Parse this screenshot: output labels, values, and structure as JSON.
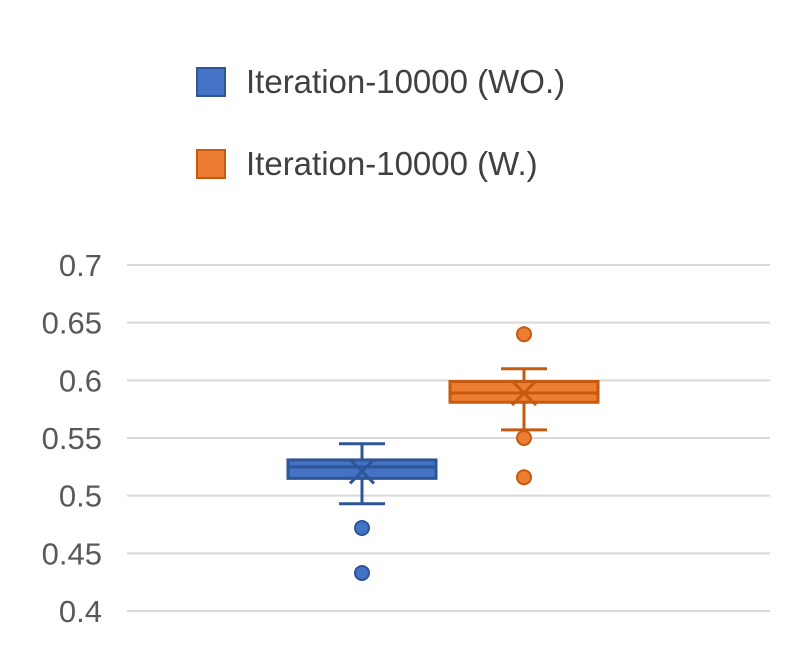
{
  "chart_data": {
    "type": "box",
    "title": "",
    "xlabel": "",
    "ylabel": "",
    "ylim": [
      0.4,
      0.7
    ],
    "yticks": [
      "0.7",
      "0.65",
      "0.6",
      "0.55",
      "0.5",
      "0.45",
      "0.4"
    ],
    "grid": true,
    "legend_position": "top",
    "series": [
      {
        "name": "Iteration-10000 (WO.)",
        "color": "#4472C4",
        "border": "#2F5597",
        "whisker_low": 0.493,
        "q1": 0.515,
        "median": 0.525,
        "q3": 0.531,
        "whisker_high": 0.545,
        "mean": 0.521,
        "outliers": [
          0.472,
          0.433
        ]
      },
      {
        "name": "Iteration-10000 (W.)",
        "color": "#ED7D31",
        "border": "#C55A11",
        "whisker_low": 0.557,
        "q1": 0.581,
        "median": 0.589,
        "q3": 0.599,
        "whisker_high": 0.61,
        "mean": 0.589,
        "outliers": [
          0.64,
          0.55,
          0.516
        ]
      }
    ]
  }
}
